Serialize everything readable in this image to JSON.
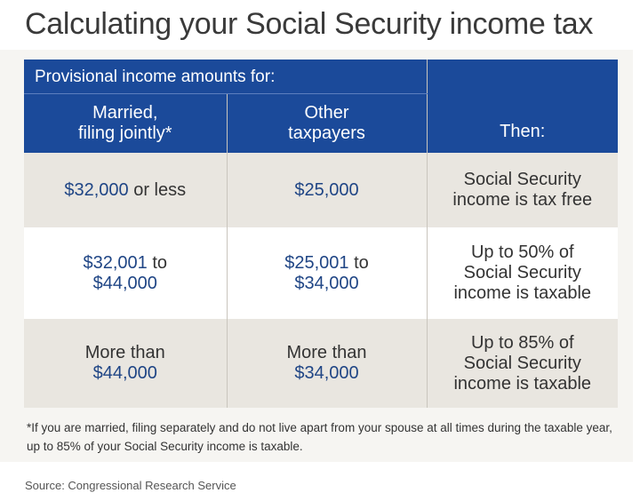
{
  "title": "Calculating your Social Security income tax",
  "header": {
    "group": "Provisional income amounts for:",
    "married": [
      "Married,",
      "filing jointly*"
    ],
    "other": [
      "Other",
      "taxpayers"
    ],
    "then": "Then:"
  },
  "rows": [
    {
      "married": {
        "amount": "$32,000",
        "suffix": " or less"
      },
      "other": {
        "amount": "$25,000"
      },
      "then": [
        "Social Security",
        "income is tax free"
      ]
    },
    {
      "married": {
        "amount": "$32,001",
        "suffix": " to",
        "amount2": "$44,000"
      },
      "other": {
        "amount": "$25,001",
        "suffix": " to",
        "amount2": "$34,000"
      },
      "then": [
        "Up to 50% of",
        "Social Security",
        "income is taxable"
      ]
    },
    {
      "married": {
        "prefix": "More than",
        "amount2": "$44,000"
      },
      "other": {
        "prefix": "More than",
        "amount2": "$34,000"
      },
      "then": [
        "Up to 85% of",
        "Social Security",
        "income is taxable"
      ]
    }
  ],
  "footnote": "*If you are married, filing separately and do not live apart from your spouse at all times during the taxable year, up to 85% of your Social Security income is taxable.",
  "source": "Source: Congressional Research Service",
  "colors": {
    "header": "#1b4a9a",
    "amount": "#1f4585",
    "shaded_row": "#e9e6e0"
  }
}
